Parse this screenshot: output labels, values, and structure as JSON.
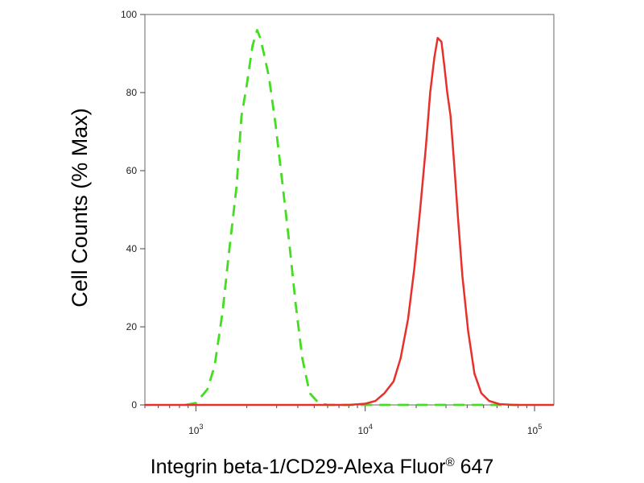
{
  "chart_data": {
    "type": "line",
    "title": "",
    "xlabel": "Integrin beta-1/CD29-Alexa Fluor",
    "xlabel_reg_mark": "®",
    "xlabel_suffix": " 647",
    "ylabel": "Cell Counts (% Max)",
    "xscale": "log",
    "xlim": [
      500,
      130000
    ],
    "ylim": [
      0,
      100
    ],
    "grid": false,
    "legend": "none",
    "y_ticks": [
      {
        "value": 0,
        "label": "0"
      },
      {
        "value": 20,
        "label": "20"
      },
      {
        "value": 40,
        "label": "40"
      },
      {
        "value": 60,
        "label": "60"
      },
      {
        "value": 80,
        "label": "80"
      },
      {
        "value": 100,
        "label": "100"
      }
    ],
    "x_ticks": [
      {
        "value": 1000,
        "base": "10",
        "exp": "3"
      },
      {
        "value": 10000,
        "base": "10",
        "exp": "4"
      },
      {
        "value": 100000,
        "base": "10",
        "exp": "5"
      }
    ],
    "series": [
      {
        "style": "dashed",
        "color": "#44dd22",
        "points": [
          [
            870,
            0
          ],
          [
            1000,
            0.5
          ],
          [
            1170,
            4
          ],
          [
            1290,
            10
          ],
          [
            1440,
            24
          ],
          [
            1560,
            38
          ],
          [
            1740,
            56
          ],
          [
            1860,
            74
          ],
          [
            2000,
            82
          ],
          [
            2160,
            92
          ],
          [
            2300,
            96
          ],
          [
            2400,
            94
          ],
          [
            2520,
            90
          ],
          [
            2700,
            84
          ],
          [
            2950,
            72
          ],
          [
            3240,
            57
          ],
          [
            3570,
            41
          ],
          [
            3880,
            26
          ],
          [
            4250,
            12
          ],
          [
            4700,
            3
          ],
          [
            5300,
            0.5
          ],
          [
            6000,
            0
          ],
          [
            9000,
            0
          ],
          [
            20000,
            0
          ],
          [
            45000,
            0
          ],
          [
            80000,
            0
          ]
        ]
      },
      {
        "style": "solid",
        "color": "#e8302a",
        "points": [
          [
            500,
            0
          ],
          [
            8000,
            0
          ],
          [
            10000,
            0.3
          ],
          [
            11500,
            1
          ],
          [
            13000,
            3
          ],
          [
            14700,
            6
          ],
          [
            16200,
            12
          ],
          [
            17900,
            22
          ],
          [
            19500,
            35
          ],
          [
            21100,
            50
          ],
          [
            22800,
            66
          ],
          [
            24200,
            80
          ],
          [
            25600,
            89
          ],
          [
            26800,
            94
          ],
          [
            28200,
            93
          ],
          [
            29300,
            87
          ],
          [
            30500,
            80
          ],
          [
            31900,
            74
          ],
          [
            33500,
            62
          ],
          [
            35300,
            48
          ],
          [
            37500,
            33
          ],
          [
            40500,
            19
          ],
          [
            44200,
            8
          ],
          [
            48500,
            3
          ],
          [
            54000,
            1
          ],
          [
            62000,
            0.2
          ],
          [
            75000,
            0
          ],
          [
            130000,
            0
          ]
        ]
      }
    ]
  }
}
